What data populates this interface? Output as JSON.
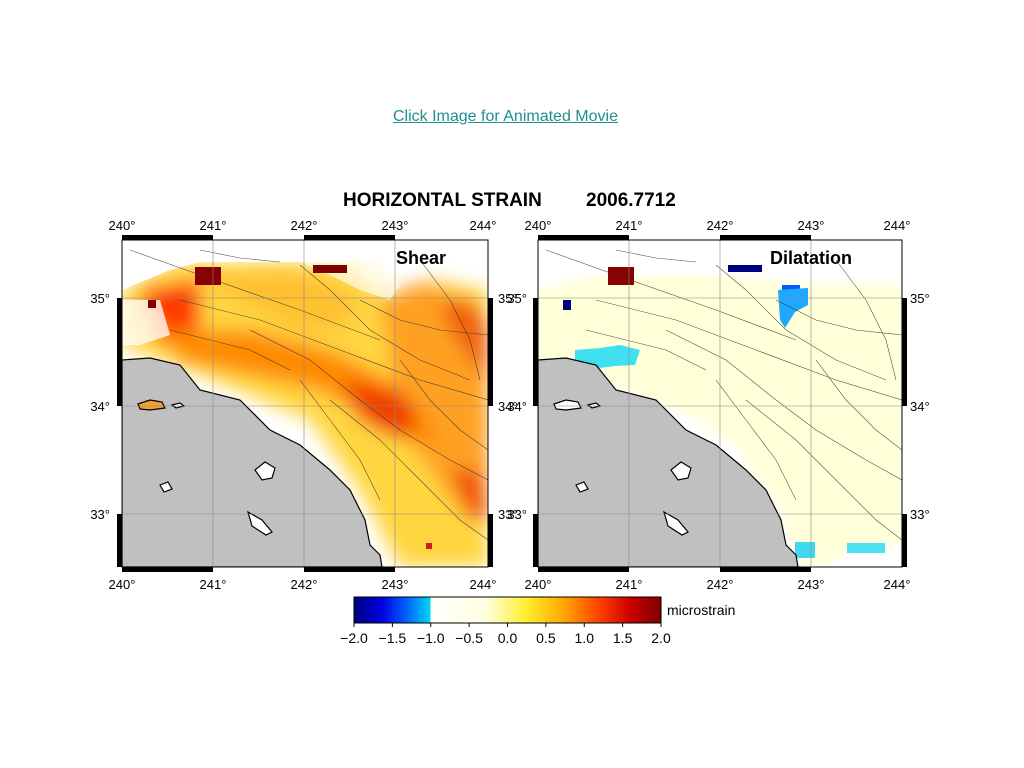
{
  "link": {
    "text": "Click Image for Animated Movie"
  },
  "figure": {
    "title": "HORIZONTAL STRAIN",
    "epoch": "2006.7712",
    "colorbar_unit": "microstrain",
    "colors": {
      "land": "#ffffff",
      "ocean": "#c0c0c0",
      "link": "#1e8f8f"
    }
  },
  "chart_data": {
    "type": "heatmap",
    "panels": [
      {
        "name": "Shear",
        "x_ticks": [
          "240°",
          "241°",
          "242°",
          "243°",
          "244°"
        ],
        "y_ticks": [
          "35°",
          "34°",
          "33°"
        ],
        "xlim": [
          240,
          244
        ],
        "ylim": [
          32.5,
          35.5
        ]
      },
      {
        "name": "Dilatation",
        "x_ticks": [
          "240°",
          "241°",
          "242°",
          "243°",
          "244°"
        ],
        "y_ticks": [
          "35°",
          "34°",
          "33°"
        ],
        "xlim": [
          240,
          244
        ],
        "ylim": [
          32.5,
          35.5
        ]
      }
    ],
    "colorbar": {
      "ticks": [
        "−2.0",
        "−1.5",
        "−1.0",
        "−0.5",
        "0.0",
        "0.5",
        "1.0",
        "1.5",
        "2.0"
      ],
      "range": [
        -2.0,
        2.0
      ],
      "unit": "microstrain"
    }
  }
}
